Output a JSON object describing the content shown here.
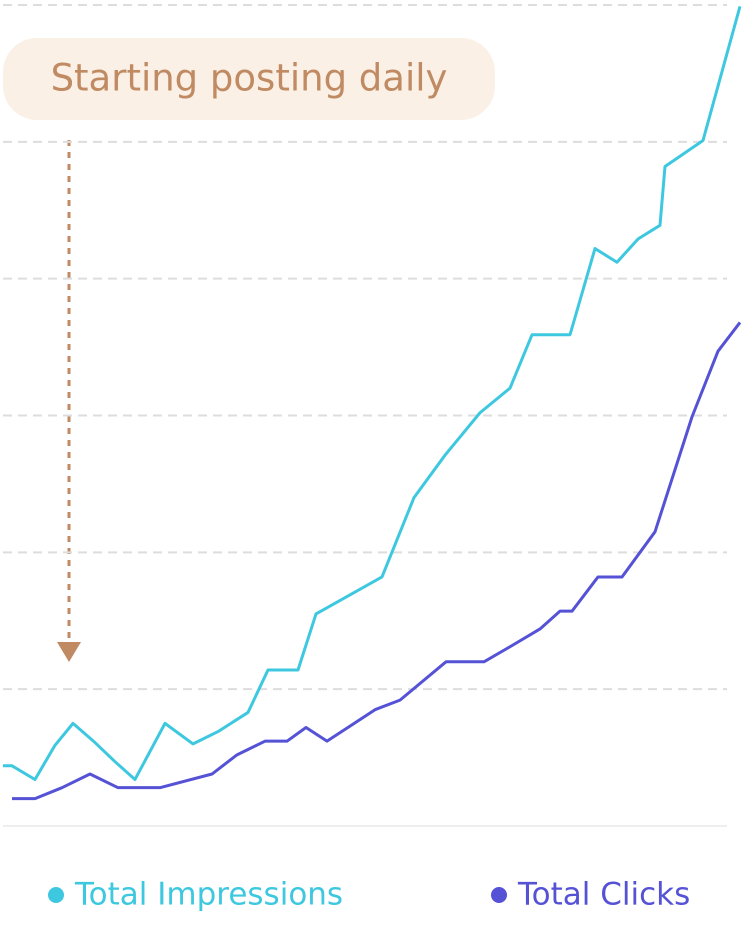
{
  "chart_data": {
    "type": "line",
    "annotation": "Starting posting daily",
    "xlim": [
      0,
      740
    ],
    "ylim": [
      0,
      6
    ],
    "yticks": [
      0,
      1,
      2,
      3,
      4,
      5,
      6
    ],
    "grid": true,
    "series": [
      {
        "name": "Total Impressions",
        "color": "#3ec8e0",
        "x": [
          3,
          12,
          35,
          55,
          73,
          95,
          115,
          135,
          165,
          193,
          218,
          248,
          268,
          298,
          316,
          382,
          414,
          445,
          480,
          510,
          532,
          570,
          595,
          617,
          638,
          660,
          665,
          703,
          740
        ],
        "values": [
          0.44,
          0.44,
          0.34,
          0.59,
          0.75,
          0.61,
          0.47,
          0.34,
          0.75,
          0.6,
          0.69,
          0.83,
          1.14,
          1.14,
          1.55,
          1.82,
          2.4,
          2.71,
          3.02,
          3.2,
          3.59,
          3.59,
          4.22,
          4.12,
          4.29,
          4.39,
          4.82,
          5.01,
          5.99
        ]
      },
      {
        "name": "Total Clicks",
        "color": "#5552d6",
        "x": [
          12,
          35,
          62,
          90,
          118,
          160,
          212,
          237,
          265,
          287,
          306,
          327,
          350,
          375,
          400,
          446,
          484,
          510,
          540,
          560,
          572,
          598,
          622,
          655,
          692,
          718,
          740
        ],
        "values": [
          0.2,
          0.2,
          0.28,
          0.38,
          0.28,
          0.28,
          0.38,
          0.52,
          0.62,
          0.62,
          0.72,
          0.62,
          0.73,
          0.85,
          0.92,
          1.2,
          1.2,
          1.31,
          1.44,
          1.57,
          1.57,
          1.82,
          1.82,
          2.15,
          2.99,
          3.47,
          3.68
        ]
      }
    ]
  }
}
